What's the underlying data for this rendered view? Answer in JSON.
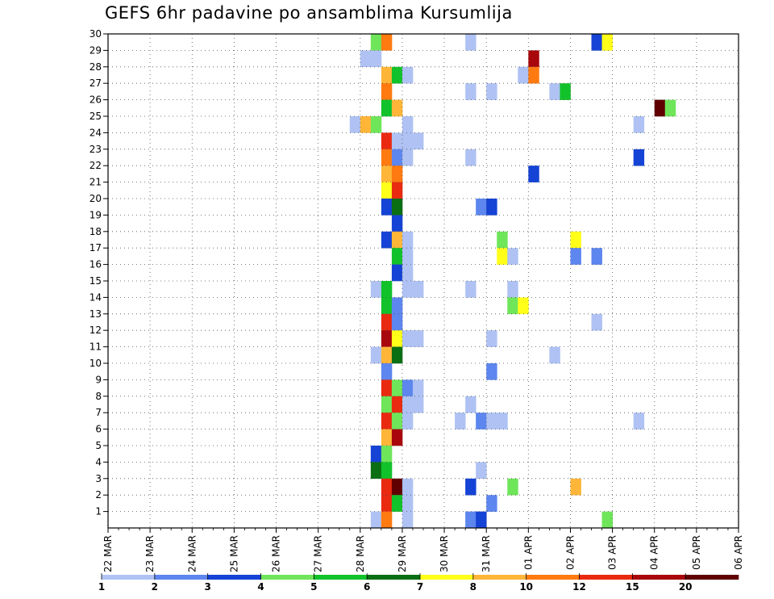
{
  "chart_data": {
    "type": "heatmap",
    "title": "GEFS 6hr padavine po ansamblima Kursumlija",
    "xlabel": "",
    "ylabel": "",
    "x_ticks": [
      "22 MAR",
      "23 MAR",
      "24 MAR",
      "25 MAR",
      "26 MAR",
      "27 MAR",
      "28 MAR",
      "29 MAR",
      "30 MAR",
      "31 MAR",
      "01 APR",
      "02 APR",
      "03 APR",
      "04 APR",
      "05 APR",
      "06 APR"
    ],
    "y_ticks": [
      1,
      2,
      3,
      4,
      5,
      6,
      7,
      8,
      9,
      10,
      11,
      12,
      13,
      14,
      15,
      16,
      17,
      18,
      19,
      20,
      21,
      22,
      23,
      24,
      25,
      26,
      27,
      28,
      29,
      30
    ],
    "y_label_suffix": "-",
    "x_range": [
      "22 MAR",
      "06 APR"
    ],
    "y_range": [
      0,
      30
    ],
    "time_step_hours": 6,
    "grid": "dotted",
    "legend": {
      "placement": "bottom",
      "levels": [
        "1",
        "2",
        "3",
        "4",
        "5",
        "6",
        "7",
        "8",
        "10",
        "12",
        "15",
        "20"
      ],
      "colors": [
        "#afc2f3",
        "#5d86ee",
        "#1443d6",
        "#6fe55a",
        "#12c22b",
        "#0a6f12",
        "#ffff1a",
        "#ffb638",
        "#ff7a10",
        "#ea2a10",
        "#a8070c",
        "#600000"
      ]
    },
    "cells": [
      {
        "m": 30,
        "col": [
          [
            25,
            3
          ],
          [
            26,
            8
          ]
        ]
      },
      {
        "m": 30,
        "col": [
          [
            34,
            0
          ],
          [
            46,
            2
          ],
          [
            47,
            6
          ]
        ]
      },
      {
        "m": 29,
        "col": [
          [
            24,
            0
          ],
          [
            25,
            0
          ],
          [
            40,
            10
          ]
        ]
      },
      {
        "m": 28,
        "col": [
          [
            26,
            7
          ],
          [
            27,
            4
          ],
          [
            28,
            0
          ],
          [
            39,
            0
          ],
          [
            40,
            8
          ]
        ]
      },
      {
        "m": 28,
        "col": [
          [
            96,
            0
          ],
          [
            109,
            0
          ],
          [
            110,
            3
          ],
          [
            111,
            4
          ],
          [
            112,
            2
          ],
          [
            113,
            0
          ]
        ]
      },
      {
        "m": 27,
        "col": [
          [
            26,
            8
          ],
          [
            34,
            0
          ],
          [
            36,
            0
          ],
          [
            42,
            0
          ],
          [
            43,
            4
          ]
        ]
      },
      {
        "m": 27,
        "col": [
          [
            109,
            1
          ]
        ]
      },
      {
        "m": 26,
        "col": [
          [
            26,
            4
          ],
          [
            27,
            7
          ],
          [
            52,
            11
          ],
          [
            53,
            3
          ]
        ]
      },
      {
        "m": 25,
        "col": [
          [
            23,
            0
          ],
          [
            24,
            7
          ],
          [
            25,
            3
          ],
          [
            28,
            0
          ],
          [
            50,
            0
          ]
        ]
      },
      {
        "m": 25,
        "col": [
          [
            107,
            0
          ],
          [
            108,
            4
          ]
        ]
      },
      {
        "m": 24,
        "col": [
          [
            26,
            9
          ],
          [
            27,
            0
          ],
          [
            28,
            0
          ],
          [
            29,
            0
          ]
        ]
      },
      {
        "m": 23,
        "col": [
          [
            26,
            8
          ],
          [
            27,
            1
          ],
          [
            28,
            0
          ],
          [
            34,
            0
          ],
          [
            50,
            2
          ]
        ]
      },
      {
        "m": 22,
        "col": [
          [
            26,
            7
          ],
          [
            27,
            8
          ],
          [
            40,
            2
          ],
          [
            95,
            1
          ],
          [
            96,
            3
          ],
          [
            98,
            1
          ],
          [
            103,
            0
          ],
          [
            110,
            1
          ]
        ]
      },
      {
        "m": 21,
        "col": [
          [
            26,
            6
          ],
          [
            27,
            9
          ]
        ]
      },
      {
        "m": 21,
        "col": [
          [
            87,
            0
          ],
          [
            110,
            2
          ],
          [
            111,
            2
          ]
        ]
      },
      {
        "m": 20,
        "col": [
          [
            26,
            2
          ],
          [
            27,
            5
          ],
          [
            35,
            1
          ],
          [
            36,
            2
          ],
          [
            102,
            0
          ],
          [
            112,
            5
          ],
          [
            113,
            3
          ]
        ]
      },
      {
        "m": 19,
        "col": [
          [
            27,
            2
          ],
          [
            107,
            0
          ],
          [
            110,
            1
          ],
          [
            111,
            1
          ]
        ]
      },
      {
        "m": 18,
        "col": [
          [
            26,
            2
          ],
          [
            27,
            7
          ],
          [
            28,
            0
          ],
          [
            37,
            3
          ],
          [
            44,
            6
          ]
        ]
      },
      {
        "m": 18,
        "col": [
          [
            107,
            3
          ],
          [
            112,
            2
          ],
          [
            113,
            0
          ]
        ]
      },
      {
        "m": 17,
        "col": [
          [
            27,
            4
          ],
          [
            28,
            0
          ],
          [
            37,
            6
          ],
          [
            38,
            0
          ],
          [
            44,
            1
          ],
          [
            46,
            1
          ]
        ]
      },
      {
        "m": 17,
        "col": [
          [
            99,
            0
          ],
          [
            100,
            2
          ]
        ]
      },
      {
        "m": 16,
        "col": [
          [
            27,
            2
          ],
          [
            28,
            0
          ],
          [
            95,
            10
          ],
          [
            96,
            0
          ],
          [
            101,
            0
          ],
          [
            106,
            0
          ]
        ]
      },
      {
        "m": 16,
        "col": [
          [
            110,
            1
          ]
        ]
      },
      {
        "m": 15,
        "col": [
          [
            25,
            0
          ],
          [
            26,
            4
          ],
          [
            28,
            0
          ],
          [
            29,
            0
          ],
          [
            34,
            0
          ],
          [
            38,
            0
          ]
        ]
      },
      {
        "m": 15,
        "col": [
          [
            85,
            1
          ],
          [
            95,
            0
          ],
          [
            96,
            8
          ],
          [
            98,
            0
          ]
        ]
      },
      {
        "m": 14,
        "col": [
          [
            26,
            4
          ],
          [
            27,
            1
          ],
          [
            38,
            3
          ],
          [
            39,
            6
          ],
          [
            101,
            0
          ],
          [
            113,
            0
          ]
        ]
      },
      {
        "m": 13,
        "col": [
          [
            26,
            9
          ],
          [
            27,
            1
          ],
          [
            46,
            0
          ],
          [
            112,
            0
          ]
        ]
      },
      {
        "m": 12,
        "col": [
          [
            26,
            10
          ],
          [
            27,
            6
          ],
          [
            28,
            0
          ],
          [
            29,
            0
          ],
          [
            36,
            0
          ]
        ]
      },
      {
        "m": 12,
        "col": [
          [
            85,
            0
          ],
          [
            99,
            0
          ],
          [
            100,
            1
          ],
          [
            101,
            0
          ]
        ]
      },
      {
        "m": 11,
        "col": [
          [
            25,
            0
          ],
          [
            26,
            7
          ],
          [
            27,
            5
          ],
          [
            42,
            0
          ]
        ]
      },
      {
        "m": 11,
        "col": [
          [
            80,
            4
          ],
          [
            81,
            10
          ],
          [
            82,
            1
          ]
        ]
      },
      {
        "m": 10,
        "col": [
          [
            26,
            1
          ],
          [
            36,
            1
          ]
        ]
      },
      {
        "m": 10,
        "col": [
          [
            95,
            0
          ],
          [
            99,
            0
          ],
          [
            100,
            2
          ],
          [
            101,
            1
          ]
        ]
      },
      {
        "m": 9,
        "col": [
          [
            26,
            9
          ],
          [
            27,
            3
          ],
          [
            28,
            1
          ],
          [
            29,
            0
          ]
        ]
      },
      {
        "m": 8,
        "col": [
          [
            26,
            3
          ],
          [
            27,
            9
          ],
          [
            28,
            0
          ],
          [
            29,
            0
          ],
          [
            34,
            0
          ]
        ]
      },
      {
        "m": 8,
        "col": [
          [
            94,
            1
          ],
          [
            95,
            3
          ],
          [
            96,
            5
          ],
          [
            112,
            0
          ]
        ]
      },
      {
        "m": 7,
        "col": [
          [
            26,
            9
          ],
          [
            27,
            3
          ],
          [
            28,
            0
          ],
          [
            33,
            0
          ],
          [
            35,
            1
          ],
          [
            36,
            0
          ],
          [
            37,
            0
          ],
          [
            50,
            0
          ]
        ]
      },
      {
        "m": 6,
        "col": [
          [
            26,
            7
          ],
          [
            27,
            10
          ]
        ]
      },
      {
        "m": 6,
        "col": [
          [
            84,
            3
          ],
          [
            85,
            4
          ],
          [
            105,
            9
          ],
          [
            106,
            7
          ],
          [
            112,
            1
          ],
          [
            113,
            0
          ]
        ]
      },
      {
        "m": 5,
        "col": [
          [
            25,
            2
          ],
          [
            26,
            3
          ]
        ]
      },
      {
        "m": 4,
        "col": [
          [
            25,
            5
          ],
          [
            26,
            4
          ],
          [
            35,
            0
          ]
        ]
      },
      {
        "m": 4,
        "col": [
          [
            84,
            0
          ],
          [
            86,
            3
          ],
          [
            87,
            2
          ],
          [
            110,
            0
          ],
          [
            112,
            0
          ]
        ]
      },
      {
        "m": 3,
        "col": [
          [
            26,
            9
          ],
          [
            27,
            11
          ],
          [
            28,
            0
          ],
          [
            34,
            2
          ],
          [
            38,
            3
          ],
          [
            44,
            7
          ]
        ]
      },
      {
        "m": 2,
        "col": [
          [
            26,
            9
          ],
          [
            27,
            4
          ],
          [
            28,
            0
          ],
          [
            36,
            1
          ]
        ]
      },
      {
        "m": 1,
        "col": [
          [
            25,
            0
          ],
          [
            26,
            8
          ],
          [
            28,
            0
          ],
          [
            34,
            1
          ],
          [
            35,
            2
          ],
          [
            47,
            3
          ]
        ]
      }
    ]
  }
}
